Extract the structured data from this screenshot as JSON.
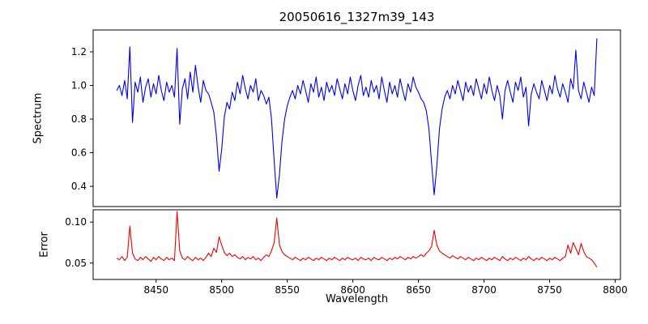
{
  "figure": {
    "background": "#ffffff",
    "axis_color": "#000000"
  },
  "chart_data": {
    "type": "line",
    "title": "20050616_1327m39_143",
    "xlabel": "Wavelength",
    "legend": "none",
    "grid": false,
    "xlim": [
      8402,
      8804
    ],
    "xticks": [
      8450,
      8500,
      8550,
      8600,
      8650,
      8700,
      8750,
      8800
    ],
    "xtick_labels": [
      "8450",
      "8500",
      "8550",
      "8600",
      "8650",
      "8700",
      "8750",
      "8800"
    ],
    "subplots": [
      {
        "name": "spectrum-panel",
        "ylabel": "Spectrum",
        "ylim": [
          0.28,
          1.33
        ],
        "yticks": [
          0.4,
          0.6,
          0.8,
          1.0,
          1.2
        ],
        "ytick_labels": [
          "0.4",
          "0.6",
          "0.8",
          "1.0",
          "1.2"
        ],
        "series": [
          {
            "name": "spectrum",
            "color": "#0000ee",
            "x_start": 8420,
            "x_step": 2,
            "values": [
              0.97,
              1.0,
              0.94,
              1.03,
              0.92,
              1.23,
              0.78,
              1.02,
              0.96,
              1.05,
              0.9,
              0.99,
              1.04,
              0.93,
              1.01,
              0.95,
              1.06,
              0.97,
              0.91,
              1.02,
              0.96,
              1.0,
              0.93,
              1.22,
              0.77,
              0.98,
              1.04,
              0.92,
              1.08,
              0.96,
              1.12,
              0.99,
              0.9,
              1.03,
              0.97,
              0.95,
              0.9,
              0.84,
              0.7,
              0.49,
              0.62,
              0.81,
              0.9,
              0.86,
              0.96,
              0.91,
              1.02,
              0.95,
              1.06,
              0.98,
              0.92,
              1.0,
              0.96,
              1.04,
              0.91,
              0.97,
              0.94,
              0.89,
              0.93,
              0.8,
              0.55,
              0.33,
              0.47,
              0.67,
              0.8,
              0.88,
              0.93,
              0.97,
              0.92,
              1.0,
              0.95,
              1.03,
              0.97,
              0.9,
              1.01,
              0.96,
              1.05,
              0.93,
              0.99,
              0.91,
              1.02,
              0.96,
              1.0,
              0.94,
              1.04,
              0.98,
              0.92,
              1.01,
              0.95,
              1.05,
              0.97,
              0.91,
              1.0,
              1.06,
              0.94,
              0.99,
              0.93,
              1.03,
              0.96,
              1.0,
              0.92,
              1.05,
              0.97,
              0.9,
              1.02,
              0.95,
              1.0,
              0.93,
              1.04,
              0.97,
              0.91,
              1.01,
              0.96,
              1.05,
              0.99,
              0.96,
              0.92,
              0.9,
              0.85,
              0.74,
              0.54,
              0.35,
              0.52,
              0.74,
              0.86,
              0.93,
              0.97,
              0.92,
              1.0,
              0.95,
              1.03,
              0.97,
              0.91,
              1.02,
              0.96,
              1.0,
              0.94,
              1.04,
              0.98,
              0.92,
              1.01,
              0.95,
              1.05,
              0.97,
              0.91,
              1.0,
              0.94,
              0.8,
              0.97,
              1.03,
              0.96,
              0.9,
              1.02,
              0.97,
              1.05,
              0.93,
              0.99,
              0.76,
              0.95,
              1.01,
              0.96,
              0.92,
              1.03,
              0.97,
              0.91,
              1.0,
              0.95,
              1.06,
              0.98,
              0.93,
              1.01,
              0.96,
              0.9,
              1.04,
              0.98,
              1.21,
              0.97,
              0.92,
              1.02,
              0.96,
              0.9,
              0.99,
              0.94,
              1.28
            ]
          }
        ]
      },
      {
        "name": "error-panel",
        "ylabel": "Error",
        "ylim": [
          0.03,
          0.115
        ],
        "yticks": [
          0.05,
          0.1
        ],
        "ytick_labels": [
          "0.05",
          "0.10"
        ],
        "series": [
          {
            "name": "error",
            "color": "#ee0000",
            "x_start": 8420,
            "x_step": 2,
            "values": [
              0.056,
              0.054,
              0.058,
              0.053,
              0.057,
              0.095,
              0.062,
              0.055,
              0.053,
              0.057,
              0.054,
              0.058,
              0.055,
              0.052,
              0.057,
              0.054,
              0.058,
              0.055,
              0.053,
              0.057,
              0.054,
              0.056,
              0.053,
              0.113,
              0.065,
              0.056,
              0.054,
              0.058,
              0.055,
              0.053,
              0.057,
              0.054,
              0.056,
              0.053,
              0.057,
              0.062,
              0.058,
              0.068,
              0.063,
              0.082,
              0.072,
              0.063,
              0.059,
              0.062,
              0.058,
              0.06,
              0.057,
              0.055,
              0.058,
              0.054,
              0.057,
              0.055,
              0.058,
              0.054,
              0.056,
              0.053,
              0.057,
              0.06,
              0.058,
              0.065,
              0.075,
              0.105,
              0.072,
              0.064,
              0.06,
              0.058,
              0.056,
              0.054,
              0.057,
              0.055,
              0.053,
              0.056,
              0.054,
              0.057,
              0.055,
              0.053,
              0.056,
              0.054,
              0.057,
              0.055,
              0.053,
              0.056,
              0.054,
              0.057,
              0.055,
              0.053,
              0.056,
              0.054,
              0.057,
              0.055,
              0.054,
              0.056,
              0.053,
              0.057,
              0.055,
              0.054,
              0.056,
              0.053,
              0.057,
              0.055,
              0.054,
              0.057,
              0.055,
              0.053,
              0.056,
              0.054,
              0.057,
              0.055,
              0.058,
              0.056,
              0.054,
              0.057,
              0.055,
              0.058,
              0.056,
              0.058,
              0.06,
              0.058,
              0.062,
              0.065,
              0.07,
              0.09,
              0.072,
              0.065,
              0.062,
              0.06,
              0.058,
              0.056,
              0.059,
              0.057,
              0.055,
              0.058,
              0.056,
              0.054,
              0.057,
              0.055,
              0.053,
              0.056,
              0.054,
              0.057,
              0.055,
              0.053,
              0.056,
              0.054,
              0.057,
              0.055,
              0.053,
              0.058,
              0.055,
              0.053,
              0.056,
              0.054,
              0.057,
              0.055,
              0.053,
              0.056,
              0.054,
              0.058,
              0.055,
              0.053,
              0.056,
              0.054,
              0.057,
              0.055,
              0.053,
              0.056,
              0.054,
              0.057,
              0.055,
              0.053,
              0.056,
              0.058,
              0.072,
              0.062,
              0.075,
              0.068,
              0.06,
              0.074,
              0.064,
              0.058,
              0.056,
              0.054,
              0.05,
              0.045
            ]
          }
        ]
      }
    ]
  }
}
